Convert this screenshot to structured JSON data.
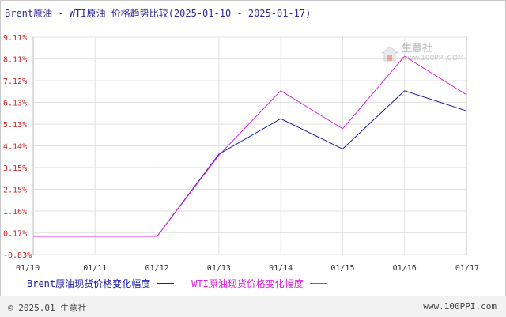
{
  "title": "Brent原油 - WTI原油 价格趋势比较(2025-01-10 - 2025-01-17)",
  "watermark": {
    "name": "生意社",
    "url": "www.100PPI.COM"
  },
  "footer": {
    "left": "© 2025.01 生意社",
    "right": "www.100PPI.com"
  },
  "chart_data": {
    "type": "line",
    "title": "Brent原油 - WTI原油 价格趋势比较(2025-01-10 - 2025-01-17)",
    "categories": [
      "01/10",
      "01/11",
      "01/12",
      "01/13",
      "01/14",
      "01/15",
      "01/16",
      "01/17"
    ],
    "y_ticks": [
      "9.11%",
      "8.11%",
      "7.12%",
      "6.13%",
      "5.13%",
      "4.14%",
      "3.15%",
      "2.15%",
      "1.16%",
      "0.17%",
      "-0.83%"
    ],
    "y_tick_values": [
      9.11,
      8.11,
      7.12,
      6.13,
      5.13,
      4.14,
      3.15,
      2.15,
      1.16,
      0.17,
      -0.83
    ],
    "ylim": [
      -0.83,
      9.11
    ],
    "grid": true,
    "legend_position": "bottom-left",
    "series": [
      {
        "name": "Brent原油现货价格变化幅度",
        "color": "#1a1aaa",
        "values": [
          0,
          0,
          0,
          3.76,
          5.38,
          4.0,
          6.66,
          5.74
        ]
      },
      {
        "name": "WTI原油现货价格变化幅度",
        "color": "#dd22dd",
        "values": [
          0,
          0,
          0,
          3.71,
          6.66,
          4.92,
          8.24,
          6.48
        ]
      }
    ]
  }
}
